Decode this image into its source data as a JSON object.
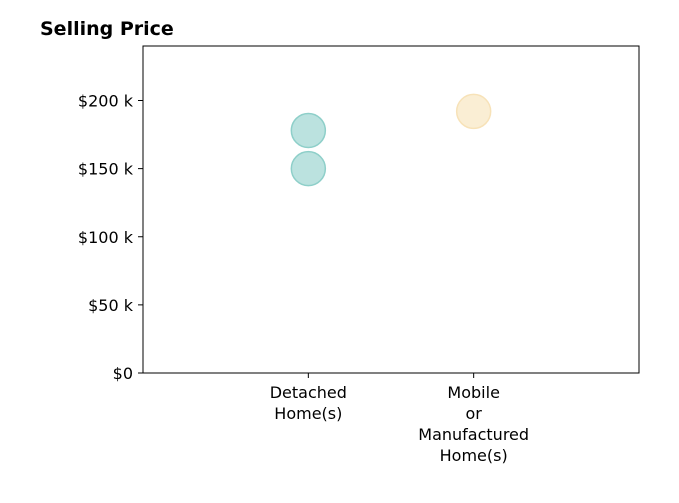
{
  "chart_data": {
    "type": "scatter",
    "title": "Selling Price",
    "xlabel": "",
    "ylabel": "",
    "categories": [
      [
        "Detached",
        "Home(s)"
      ],
      [
        "Mobile",
        "or",
        "Manufactured",
        "Home(s)"
      ]
    ],
    "y_ticks": [
      {
        "value": 0,
        "label": "$0"
      },
      {
        "value": 50000,
        "label": "$50 k"
      },
      {
        "value": 100000,
        "label": "$100 k"
      },
      {
        "value": 150000,
        "label": "$150 k"
      },
      {
        "value": 200000,
        "label": "$200 k"
      }
    ],
    "ylim": [
      0,
      240000
    ],
    "x_range": [
      -1,
      2
    ],
    "grid": false,
    "legend": "none",
    "series": [
      {
        "color": "#8ecfc9",
        "points": [
          {
            "x": 0,
            "y": 150000
          },
          {
            "x": 0,
            "y": 178000
          }
        ]
      },
      {
        "color": "#f7e2b8",
        "points": [
          {
            "x": 1,
            "y": 192000
          }
        ]
      }
    ]
  }
}
